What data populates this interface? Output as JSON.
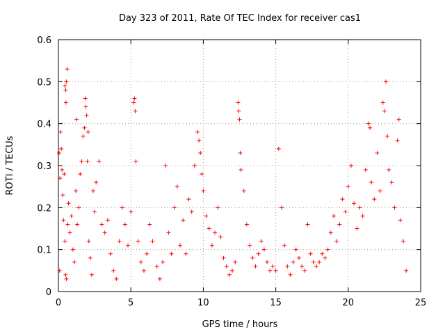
{
  "chart_data": {
    "type": "scatter",
    "title": "Day 323 of 2011, Rate Of TEC Index for receiver cas1",
    "xlabel": "GPS time / hours",
    "ylabel": "ROTI / TECUs",
    "xlim": [
      0,
      25
    ],
    "ylim": [
      0,
      0.6
    ],
    "x_ticks": [
      "0",
      "5",
      "10",
      "15",
      "20",
      "25"
    ],
    "y_ticks": [
      "0",
      "0.1",
      "0.2",
      "0.3",
      "0.4",
      "0.5",
      "0.6"
    ],
    "grid": true,
    "marker": "+",
    "marker_color": "#ff0000",
    "series": [
      {
        "name": "cas1",
        "points": [
          [
            0.05,
            0.33
          ],
          [
            0.08,
            0.05
          ],
          [
            0.1,
            0.27
          ],
          [
            0.15,
            0.38
          ],
          [
            0.2,
            0.34
          ],
          [
            0.25,
            0.29
          ],
          [
            0.3,
            0.23
          ],
          [
            0.35,
            0.17
          ],
          [
            0.4,
            0.28
          ],
          [
            0.45,
            0.12
          ],
          [
            0.5,
            0.04
          ],
          [
            0.55,
            0.03
          ],
          [
            0.45,
            0.49
          ],
          [
            0.5,
            0.48
          ],
          [
            0.52,
            0.45
          ],
          [
            0.55,
            0.5
          ],
          [
            0.6,
            0.53
          ],
          [
            0.65,
            0.16
          ],
          [
            0.7,
            0.21
          ],
          [
            0.8,
            0.14
          ],
          [
            0.9,
            0.18
          ],
          [
            1.0,
            0.1
          ],
          [
            1.1,
            0.07
          ],
          [
            1.2,
            0.24
          ],
          [
            1.25,
            0.41
          ],
          [
            1.3,
            0.16
          ],
          [
            1.4,
            0.2
          ],
          [
            1.5,
            0.28
          ],
          [
            1.6,
            0.31
          ],
          [
            1.7,
            0.37
          ],
          [
            1.8,
            0.39
          ],
          [
            1.85,
            0.46
          ],
          [
            1.9,
            0.44
          ],
          [
            1.95,
            0.42
          ],
          [
            2.0,
            0.31
          ],
          [
            2.05,
            0.38
          ],
          [
            2.1,
            0.12
          ],
          [
            2.2,
            0.08
          ],
          [
            2.3,
            0.04
          ],
          [
            2.4,
            0.24
          ],
          [
            2.5,
            0.19
          ],
          [
            2.6,
            0.26
          ],
          [
            2.8,
            0.31
          ],
          [
            3.0,
            0.16
          ],
          [
            3.2,
            0.14
          ],
          [
            3.4,
            0.17
          ],
          [
            3.6,
            0.09
          ],
          [
            3.8,
            0.05
          ],
          [
            4.0,
            0.03
          ],
          [
            4.2,
            0.12
          ],
          [
            4.4,
            0.2
          ],
          [
            4.6,
            0.16
          ],
          [
            4.8,
            0.11
          ],
          [
            5.0,
            0.19
          ],
          [
            5.2,
            0.45
          ],
          [
            5.25,
            0.46
          ],
          [
            5.3,
            0.43
          ],
          [
            5.35,
            0.31
          ],
          [
            5.5,
            0.12
          ],
          [
            5.7,
            0.07
          ],
          [
            5.9,
            0.05
          ],
          [
            6.1,
            0.09
          ],
          [
            6.3,
            0.16
          ],
          [
            6.5,
            0.12
          ],
          [
            6.8,
            0.06
          ],
          [
            7.0,
            0.03
          ],
          [
            7.2,
            0.07
          ],
          [
            7.4,
            0.3
          ],
          [
            7.6,
            0.14
          ],
          [
            7.8,
            0.09
          ],
          [
            8.0,
            0.2
          ],
          [
            8.2,
            0.25
          ],
          [
            8.4,
            0.11
          ],
          [
            8.6,
            0.17
          ],
          [
            8.8,
            0.09
          ],
          [
            9.0,
            0.22
          ],
          [
            9.2,
            0.19
          ],
          [
            9.4,
            0.3
          ],
          [
            9.6,
            0.38
          ],
          [
            9.7,
            0.36
          ],
          [
            9.8,
            0.33
          ],
          [
            9.9,
            0.28
          ],
          [
            10.0,
            0.24
          ],
          [
            10.2,
            0.18
          ],
          [
            10.4,
            0.15
          ],
          [
            10.6,
            0.11
          ],
          [
            10.8,
            0.14
          ],
          [
            11.0,
            0.2
          ],
          [
            11.2,
            0.13
          ],
          [
            11.4,
            0.08
          ],
          [
            11.6,
            0.06
          ],
          [
            11.8,
            0.04
          ],
          [
            12.0,
            0.05
          ],
          [
            12.2,
            0.07
          ],
          [
            12.4,
            0.45
          ],
          [
            12.45,
            0.43
          ],
          [
            12.5,
            0.41
          ],
          [
            12.55,
            0.33
          ],
          [
            12.6,
            0.29
          ],
          [
            12.8,
            0.24
          ],
          [
            13.0,
            0.16
          ],
          [
            13.2,
            0.11
          ],
          [
            13.4,
            0.08
          ],
          [
            13.6,
            0.06
          ],
          [
            13.8,
            0.09
          ],
          [
            14.0,
            0.12
          ],
          [
            14.2,
            0.1
          ],
          [
            14.4,
            0.07
          ],
          [
            14.6,
            0.05
          ],
          [
            14.8,
            0.06
          ],
          [
            15.0,
            0.05
          ],
          [
            15.2,
            0.34
          ],
          [
            15.4,
            0.2
          ],
          [
            15.6,
            0.11
          ],
          [
            15.8,
            0.06
          ],
          [
            16.0,
            0.04
          ],
          [
            16.2,
            0.07
          ],
          [
            16.4,
            0.1
          ],
          [
            16.6,
            0.08
          ],
          [
            16.8,
            0.06
          ],
          [
            17.0,
            0.05
          ],
          [
            17.2,
            0.16
          ],
          [
            17.4,
            0.09
          ],
          [
            17.6,
            0.07
          ],
          [
            17.8,
            0.06
          ],
          [
            18.0,
            0.07
          ],
          [
            18.2,
            0.09
          ],
          [
            18.4,
            0.08
          ],
          [
            18.6,
            0.1
          ],
          [
            18.8,
            0.14
          ],
          [
            19.0,
            0.18
          ],
          [
            19.2,
            0.12
          ],
          [
            19.4,
            0.16
          ],
          [
            19.6,
            0.22
          ],
          [
            19.8,
            0.19
          ],
          [
            20.0,
            0.25
          ],
          [
            20.2,
            0.3
          ],
          [
            20.4,
            0.21
          ],
          [
            20.6,
            0.15
          ],
          [
            20.8,
            0.2
          ],
          [
            21.0,
            0.18
          ],
          [
            21.2,
            0.29
          ],
          [
            21.4,
            0.4
          ],
          [
            21.5,
            0.39
          ],
          [
            21.6,
            0.26
          ],
          [
            21.8,
            0.22
          ],
          [
            22.0,
            0.33
          ],
          [
            22.2,
            0.24
          ],
          [
            22.4,
            0.45
          ],
          [
            22.5,
            0.43
          ],
          [
            22.6,
            0.5
          ],
          [
            22.7,
            0.37
          ],
          [
            22.8,
            0.29
          ],
          [
            23.0,
            0.26
          ],
          [
            23.2,
            0.2
          ],
          [
            23.4,
            0.36
          ],
          [
            23.5,
            0.41
          ],
          [
            23.6,
            0.17
          ],
          [
            23.8,
            0.12
          ],
          [
            24.0,
            0.05
          ]
        ]
      }
    ]
  }
}
